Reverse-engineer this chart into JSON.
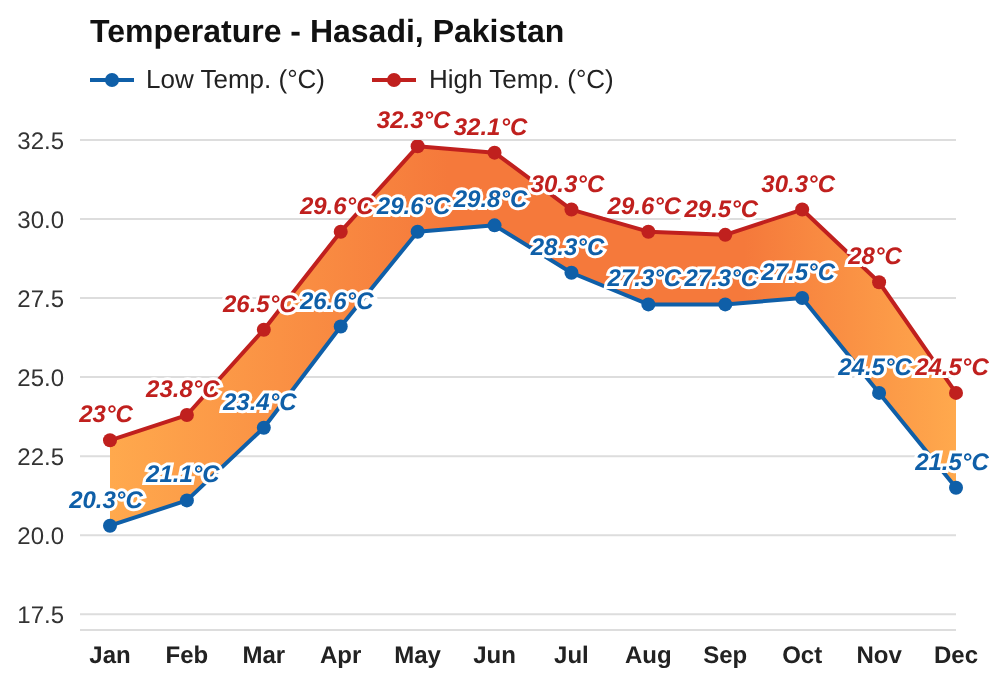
{
  "chart_data": {
    "type": "line",
    "title": "Temperature - Hasadi, Pakistan",
    "categories": [
      "Jan",
      "Feb",
      "Mar",
      "Apr",
      "May",
      "Jun",
      "Jul",
      "Aug",
      "Sep",
      "Oct",
      "Nov",
      "Dec"
    ],
    "series": [
      {
        "name": "Low Temp. (°C)",
        "color": "#0f5fa8",
        "values": [
          20.3,
          21.1,
          23.4,
          26.6,
          29.6,
          29.8,
          28.3,
          27.3,
          27.3,
          27.5,
          24.5,
          21.5
        ],
        "value_labels": [
          "20.3°C",
          "21.1°C",
          "23.4°C",
          "26.6°C",
          "29.6°C",
          "29.8°C",
          "28.3°C",
          "27.3°C",
          "27.3°C",
          "27.5°C",
          "24.5°C",
          "21.5°C"
        ]
      },
      {
        "name": "High Temp. (°C)",
        "color": "#c0201e",
        "values": [
          23,
          23.8,
          26.5,
          29.6,
          32.3,
          32.1,
          30.3,
          29.6,
          29.5,
          30.3,
          28,
          24.5
        ],
        "value_labels": [
          "23°C",
          "23.8°C",
          "26.5°C",
          "29.6°C",
          "32.3°C",
          "32.1°C",
          "30.3°C",
          "29.6°C",
          "29.5°C",
          "30.3°C",
          "28°C",
          "24.5°C"
        ],
        "lower": [
          20.3,
          21.1,
          23.4,
          26.6,
          29.6,
          29.8,
          28.3,
          27.3,
          27.3,
          27.5,
          24.5,
          21.5
        ],
        "upper": [
          23,
          23.8,
          26.5,
          29.6,
          32.3,
          32.1,
          30.3,
          29.6,
          29.5,
          30.3,
          28,
          24.5
        ]
      }
    ],
    "ylim": [
      17,
      32.5
    ],
    "yticks": [
      17.5,
      {
        "value": 20,
        "label": "20.0"
      },
      22.5,
      {
        "value": 25,
        "label": "25.0"
      },
      27.5,
      {
        "value": 30,
        "label": "30.0"
      },
      32.5
    ],
    "grid": "y",
    "legend": "top left",
    "marker": "circle",
    "line_style": "solid"
  }
}
